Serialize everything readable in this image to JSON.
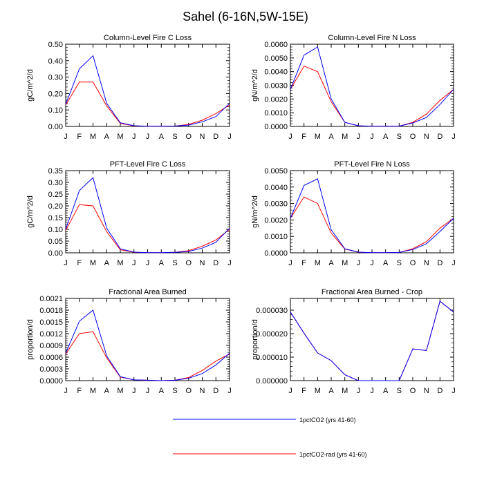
{
  "figure": {
    "title": "Sahel (6-16N,5W-15E)"
  },
  "legend": [
    {
      "name": "1pctCO2 (yrs 41-60)",
      "color": "#0000ff"
    },
    {
      "name": "1pctCO2-rad (yrs 41-60)",
      "color": "#ff0000"
    }
  ],
  "chart_data": [
    {
      "type": "line",
      "title": "Column-Level Fire C Loss",
      "ylabel": "gC/m^2/d",
      "categories": [
        "J",
        "F",
        "M",
        "A",
        "M",
        "J",
        "J",
        "A",
        "S",
        "O",
        "N",
        "D",
        "J"
      ],
      "ylim": [
        0,
        0.5
      ],
      "yticks": [
        "0.00",
        "0.10",
        "0.20",
        "0.30",
        "0.40",
        "0.50"
      ],
      "grid": false,
      "series": [
        {
          "name": "1pctCO2 (yrs 41-60)",
          "color": "#0000ff",
          "values": [
            0.135,
            0.35,
            0.43,
            0.14,
            0.022,
            0.004,
            0.001,
            0.001,
            0.002,
            0.008,
            0.028,
            0.06,
            0.14
          ]
        },
        {
          "name": "1pctCO2-rad (yrs 41-60)",
          "color": "#ff0000",
          "values": [
            0.13,
            0.27,
            0.27,
            0.125,
            0.018,
            0.003,
            0.001,
            0.001,
            0.002,
            0.012,
            0.038,
            0.078,
            0.13
          ]
        }
      ]
    },
    {
      "type": "line",
      "title": "Column-Level Fire N Loss",
      "ylabel": "gN/m^2/d",
      "categories": [
        "J",
        "F",
        "M",
        "A",
        "M",
        "J",
        "J",
        "A",
        "S",
        "O",
        "N",
        "D",
        "J"
      ],
      "ylim": [
        0,
        0.006
      ],
      "yticks": [
        "0.0000",
        "0.0010",
        "0.0020",
        "0.0030",
        "0.0040",
        "0.0050",
        "0.0060"
      ],
      "grid": false,
      "series": [
        {
          "name": "1pctCO2 (yrs 41-60)",
          "color": "#0000ff",
          "values": [
            0.0027,
            0.0052,
            0.0058,
            0.002,
            0.0003,
            5e-05,
            1e-05,
            1e-05,
            2e-05,
            0.00025,
            0.00065,
            0.0016,
            0.0027
          ]
        },
        {
          "name": "1pctCO2-rad (yrs 41-60)",
          "color": "#ff0000",
          "values": [
            0.0027,
            0.0044,
            0.004,
            0.0018,
            0.0003,
            4e-05,
            1e-05,
            1e-05,
            2e-05,
            0.0003,
            0.0009,
            0.0019,
            0.0027
          ]
        }
      ]
    },
    {
      "type": "line",
      "title": "PFT-Level Fire C Loss",
      "ylabel": "gC/m^2/d",
      "categories": [
        "J",
        "F",
        "M",
        "A",
        "M",
        "J",
        "J",
        "A",
        "S",
        "O",
        "N",
        "D",
        "J"
      ],
      "ylim": [
        0,
        0.35
      ],
      "yticks": [
        "0.00",
        "0.05",
        "0.10",
        "0.15",
        "0.20",
        "0.25",
        "0.30",
        "0.35"
      ],
      "grid": false,
      "series": [
        {
          "name": "1pctCO2 (yrs 41-60)",
          "color": "#0000ff",
          "values": [
            0.1,
            0.265,
            0.32,
            0.105,
            0.017,
            0.003,
            0.001,
            0.001,
            0.002,
            0.006,
            0.02,
            0.045,
            0.105
          ]
        },
        {
          "name": "1pctCO2-rad (yrs 41-60)",
          "color": "#ff0000",
          "values": [
            0.095,
            0.205,
            0.2,
            0.09,
            0.013,
            0.002,
            0.001,
            0.001,
            0.002,
            0.009,
            0.028,
            0.055,
            0.1
          ]
        }
      ]
    },
    {
      "type": "line",
      "title": "PFT-Level Fire N Loss",
      "ylabel": "gN/m^2/d",
      "categories": [
        "J",
        "F",
        "M",
        "A",
        "M",
        "J",
        "J",
        "A",
        "S",
        "O",
        "N",
        "D",
        "J"
      ],
      "ylim": [
        0,
        0.005
      ],
      "yticks": [
        "0.0000",
        "0.0010",
        "0.0020",
        "0.0030",
        "0.0040",
        "0.0050"
      ],
      "grid": false,
      "series": [
        {
          "name": "1pctCO2 (yrs 41-60)",
          "color": "#0000ff",
          "values": [
            0.0021,
            0.0041,
            0.0045,
            0.0014,
            0.00025,
            4e-05,
            1e-05,
            1e-05,
            2e-05,
            0.0002,
            0.00055,
            0.0013,
            0.0021
          ]
        },
        {
          "name": "1pctCO2-rad (yrs 41-60)",
          "color": "#ff0000",
          "values": [
            0.0021,
            0.0034,
            0.003,
            0.0012,
            0.00023,
            3e-05,
            1e-05,
            1e-05,
            2e-05,
            0.00025,
            0.00068,
            0.0015,
            0.0021
          ]
        }
      ]
    },
    {
      "type": "line",
      "title": "Fractional Area Burned",
      "ylabel": "proportion/d",
      "categories": [
        "J",
        "F",
        "M",
        "A",
        "M",
        "J",
        "J",
        "A",
        "S",
        "O",
        "N",
        "D",
        "J"
      ],
      "ylim": [
        0,
        0.0021
      ],
      "yticks": [
        "0.0000",
        "0.0003",
        "0.0006",
        "0.0009",
        "0.0012",
        "0.0015",
        "0.0018",
        "0.0021"
      ],
      "grid": false,
      "series": [
        {
          "name": "1pctCO2 (yrs 41-60)",
          "color": "#0000ff",
          "values": [
            0.0007,
            0.00152,
            0.0018,
            0.00063,
            0.0001,
            2e-05,
            1e-05,
            0.0,
            1e-05,
            6e-05,
            0.00018,
            0.0004,
            0.0007
          ]
        },
        {
          "name": "1pctCO2-rad (yrs 41-60)",
          "color": "#ff0000",
          "values": [
            0.00068,
            0.0012,
            0.00125,
            0.00058,
            9e-05,
            2e-05,
            1e-05,
            0.0,
            1e-05,
            8e-05,
            0.00026,
            0.0005,
            0.00068
          ]
        }
      ]
    },
    {
      "type": "line",
      "title": "Fractional Area Burned - Crop",
      "ylabel": "proportion/d",
      "categories": [
        "J",
        "F",
        "M",
        "A",
        "M",
        "J",
        "J",
        "A",
        "S",
        "O",
        "N",
        "D",
        "J"
      ],
      "ylim": [
        0,
        3.5e-05
      ],
      "yticks": [
        "0.000000",
        "0.000010",
        "0.000020",
        "0.000030"
      ],
      "yticks_values": [
        0,
        1e-05,
        2e-05,
        3e-05
      ],
      "grid": false,
      "series": [
        {
          "name": "1pctCO2 (yrs 41-60)",
          "color": "#0000ff",
          "values": [
            2.92e-05,
            2.02e-05,
            1.18e-05,
            8.5e-06,
            2.5e-06,
            0.0,
            0.0,
            0.0,
            0.0,
            1.35e-05,
            1.28e-05,
            3.38e-05,
            2.92e-05
          ]
        },
        {
          "name": "1pctCO2-rad (yrs 41-60)",
          "color": "#ff0000",
          "values": [
            2.92e-05,
            2.02e-05,
            1.18e-05,
            8.5e-06,
            2.5e-06,
            0.0,
            0.0,
            0.0,
            0.0,
            1.35e-05,
            1.28e-05,
            3.38e-05,
            2.92e-05
          ]
        }
      ]
    }
  ]
}
